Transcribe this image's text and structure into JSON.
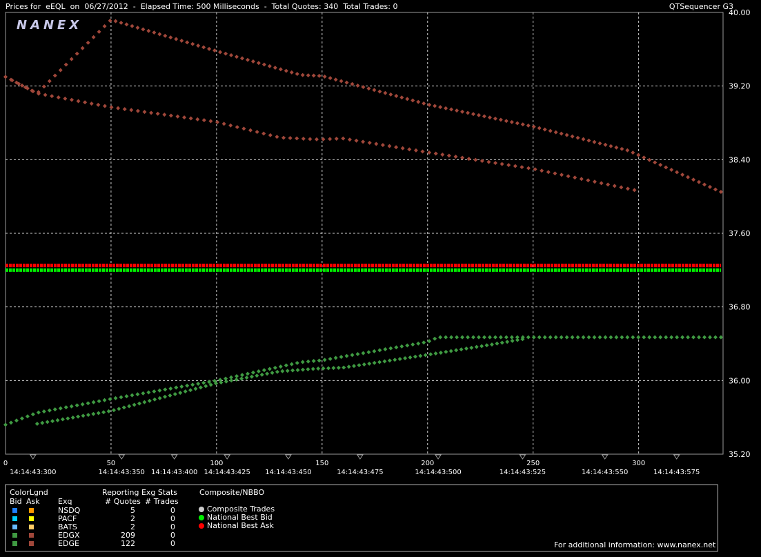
{
  "header": {
    "title": "Prices for  eEQL  on  06/27/2012  -  Elapsed Time: 500 Milliseconds  -  Total Quotes: 340  Total Trades: 0",
    "app_name": "QTSequencer G3",
    "logo": "NANEX"
  },
  "chart_data": {
    "type": "scatter",
    "ylim": [
      35.2,
      40.0
    ],
    "xlim": [
      0,
      340
    ],
    "y_ticks": [
      "40.00",
      "39.20",
      "38.40",
      "37.60",
      "36.80",
      "36.00",
      "35.20"
    ],
    "x_ticks": [
      "0",
      "50",
      "100",
      "150",
      "200",
      "250",
      "300"
    ],
    "time_labels": [
      "14:14:43:300",
      "14:14:43:350",
      "14:14:43:400",
      "14:14:43:425",
      "14:14:43:450",
      "14:14:43:475",
      "14:14:43:500",
      "14:14:43:525",
      "14:14:43:550",
      "14:14:43:575"
    ],
    "grid": true,
    "series": [
      {
        "name": "EDGX Ask",
        "color": "#a0473a",
        "points": [
          [
            0,
            39.3
          ],
          [
            15,
            39.12
          ],
          [
            50,
            39.92
          ],
          [
            100,
            39.58
          ],
          [
            140,
            39.32
          ],
          [
            150,
            39.31
          ],
          [
            200,
            39.0
          ],
          [
            250,
            38.76
          ],
          [
            295,
            38.5
          ],
          [
            339,
            38.05
          ]
        ]
      },
      {
        "name": "EDGE Ask",
        "color": "#a0473a",
        "points": [
          [
            0,
            39.3
          ],
          [
            15,
            39.12
          ],
          [
            50,
            38.97
          ],
          [
            100,
            38.81
          ],
          [
            130,
            38.64
          ],
          [
            148,
            38.62
          ],
          [
            160,
            38.63
          ],
          [
            200,
            38.48
          ],
          [
            250,
            38.3
          ],
          [
            298,
            38.07
          ]
        ]
      },
      {
        "name": "EDGX Bid",
        "color": "#3f9a42",
        "points": [
          [
            0,
            35.52
          ],
          [
            15,
            35.65
          ],
          [
            50,
            35.8
          ],
          [
            100,
            36.0
          ],
          [
            140,
            36.2
          ],
          [
            150,
            36.22
          ],
          [
            200,
            36.42
          ],
          [
            205,
            36.47
          ],
          [
            250,
            36.47
          ],
          [
            339,
            36.47
          ]
        ]
      },
      {
        "name": "EDGE Bid",
        "color": "#3f9a42",
        "points": [
          [
            15,
            35.53
          ],
          [
            50,
            35.67
          ],
          [
            100,
            35.97
          ],
          [
            130,
            36.1
          ],
          [
            148,
            36.13
          ],
          [
            160,
            36.14
          ],
          [
            200,
            36.28
          ],
          [
            230,
            36.39
          ],
          [
            245,
            36.45
          ]
        ]
      },
      {
        "name": "National Best Ask",
        "color": "#ff0000",
        "points": [
          [
            0,
            37.25
          ],
          [
            339,
            37.25
          ]
        ]
      },
      {
        "name": "National Best Bid",
        "color": "#00ee00",
        "points": [
          [
            0,
            37.2
          ],
          [
            339,
            37.2
          ]
        ]
      }
    ]
  },
  "legend": {
    "color_legend": "ColorLgnd",
    "bid": "Bid",
    "ask": "Ask",
    "exq": "Exq",
    "reporting": "Reporting Exg Stats",
    "quotes_header": "# Quotes",
    "trades_header": "# Trades",
    "composite_header": "Composite/NBBO",
    "rows": [
      {
        "exchange": "NSDQ",
        "quotes": "5",
        "trades": "0",
        "bid_color": "#1f7fff",
        "ask_color": "#ff9900"
      },
      {
        "exchange": "PACF",
        "quotes": "2",
        "trades": "0",
        "bid_color": "#00ccff",
        "ask_color": "#ffff00"
      },
      {
        "exchange": "BATS",
        "quotes": "2",
        "trades": "0",
        "bid_color": "#66bbff",
        "ask_color": "#ffcc66"
      },
      {
        "exchange": "EDGX",
        "quotes": "209",
        "trades": "0",
        "bid_color": "#3f9a42",
        "ask_color": "#a0473a"
      },
      {
        "exchange": "EDGE",
        "quotes": "122",
        "trades": "0",
        "bid_color": "#3f9a42",
        "ask_color": "#a0473a"
      }
    ],
    "composite_items": [
      {
        "label": "Composite Trades",
        "color": "#cccccc"
      },
      {
        "label": "National Best Bid",
        "color": "#00ee00"
      },
      {
        "label": "National Best Ask",
        "color": "#ff0000"
      }
    ],
    "footer": "For additional information: www.nanex.net"
  }
}
